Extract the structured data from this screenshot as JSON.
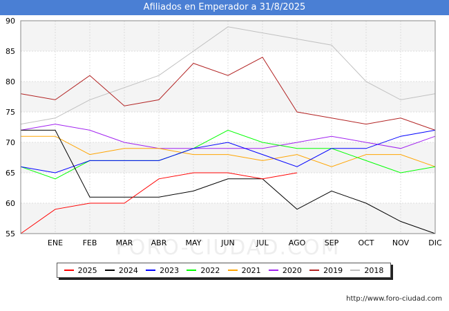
{
  "title": "Afiliados en Emperador a 31/8/2025",
  "footer_url": "http://www.foro-ciudad.com",
  "watermark": "FORO-CIUDAD.COM",
  "chart_data": {
    "type": "line",
    "title": "Afiliados en Emperador a 31/8/2025",
    "xlabel": "",
    "ylabel": "",
    "categories": [
      "",
      "ENE",
      "FEB",
      "MAR",
      "ABR",
      "MAY",
      "JUN",
      "JUL",
      "AGO",
      "SEP",
      "OCT",
      "NOV",
      "DIC"
    ],
    "ylim": [
      55,
      90
    ],
    "yticks": [
      55,
      60,
      65,
      70,
      75,
      80,
      85,
      90
    ],
    "grid": true,
    "legend_position": "bottom",
    "series": [
      {
        "name": "2025",
        "color": "#ff0000",
        "values": [
          55,
          59,
          60,
          60,
          64,
          65,
          65,
          64,
          65,
          null,
          null,
          null,
          null
        ]
      },
      {
        "name": "2024",
        "color": "#000000",
        "values": [
          72,
          72,
          61,
          61,
          61,
          62,
          64,
          64,
          59,
          62,
          60,
          57,
          55
        ]
      },
      {
        "name": "2023",
        "color": "#0000ff",
        "values": [
          66,
          65,
          67,
          67,
          67,
          69,
          70,
          68,
          66,
          69,
          69,
          71,
          72
        ]
      },
      {
        "name": "2022",
        "color": "#00ff00",
        "values": [
          66,
          64,
          67,
          67,
          67,
          69,
          72,
          70,
          69,
          69,
          67,
          65,
          66
        ]
      },
      {
        "name": "2021",
        "color": "#ffa500",
        "values": [
          71,
          71,
          68,
          69,
          69,
          68,
          68,
          67,
          68,
          66,
          68,
          68,
          66
        ]
      },
      {
        "name": "2020",
        "color": "#a020f0",
        "values": [
          72,
          73,
          72,
          70,
          69,
          69,
          69,
          69,
          70,
          71,
          70,
          69,
          71
        ]
      },
      {
        "name": "2019",
        "color": "#b22222",
        "values": [
          78,
          77,
          81,
          76,
          77,
          83,
          81,
          84,
          75,
          74,
          73,
          74,
          72
        ]
      },
      {
        "name": "2018",
        "color": "#c0c0c0",
        "values": [
          73,
          74,
          77,
          79,
          81,
          85,
          89,
          88,
          87,
          86,
          80,
          77,
          78
        ]
      }
    ]
  }
}
